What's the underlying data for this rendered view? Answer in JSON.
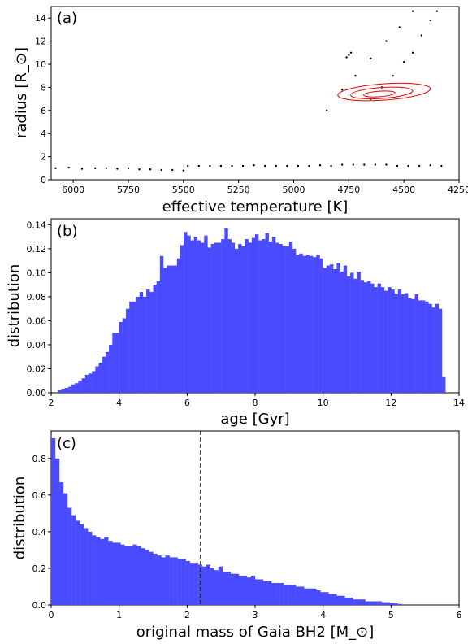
{
  "chart_data": [
    {
      "type": "scatter",
      "panel_label": "(a)",
      "xlabel": "effective temperature [K]",
      "ylabel": "radius [R_⊙]",
      "xlim": [
        6100,
        4250
      ],
      "ylim": [
        0,
        15
      ],
      "x_ticks": [
        6000,
        5750,
        5500,
        5250,
        5000,
        4750,
        4500,
        4250
      ],
      "y_ticks": [
        0,
        2,
        4,
        6,
        8,
        10,
        12,
        14
      ],
      "series": [
        {
          "name": "",
          "color": "#000000",
          "points": [
            [
              6080,
              1.0
            ],
            [
              6020,
              1.05
            ],
            [
              5960,
              0.95
            ],
            [
              5900,
              1.0
            ],
            [
              5850,
              1.0
            ],
            [
              5800,
              0.95
            ],
            [
              5750,
              1.0
            ],
            [
              5700,
              0.9
            ],
            [
              5650,
              0.9
            ],
            [
              5600,
              0.85
            ],
            [
              5550,
              0.85
            ],
            [
              5500,
              0.8
            ],
            [
              5480,
              1.2
            ],
            [
              5430,
              1.2
            ],
            [
              5380,
              1.2
            ],
            [
              5330,
              1.2
            ],
            [
              5280,
              1.2
            ],
            [
              5230,
              1.2
            ],
            [
              5180,
              1.25
            ],
            [
              5130,
              1.2
            ],
            [
              5080,
              1.2
            ],
            [
              5030,
              1.2
            ],
            [
              4980,
              1.2
            ],
            [
              4930,
              1.2
            ],
            [
              4880,
              1.25
            ],
            [
              4830,
              1.2
            ],
            [
              4780,
              1.3
            ],
            [
              4730,
              1.3
            ],
            [
              4680,
              1.3
            ],
            [
              4630,
              1.3
            ],
            [
              4580,
              1.3
            ],
            [
              4530,
              1.2
            ],
            [
              4480,
              1.2
            ],
            [
              4430,
              1.2
            ],
            [
              4380,
              1.25
            ],
            [
              4330,
              1.2
            ],
            [
              4850,
              6.0
            ],
            [
              4780,
              7.8
            ],
            [
              4720,
              9.0
            ],
            [
              4650,
              10.5
            ],
            [
              4580,
              12.0
            ],
            [
              4520,
              13.2
            ],
            [
              4460,
              14.6
            ],
            [
              4650,
              7.0
            ],
            [
              4600,
              8.0
            ],
            [
              4550,
              9.0
            ],
            [
              4500,
              10.2
            ],
            [
              4460,
              11.0
            ],
            [
              4420,
              12.5
            ],
            [
              4380,
              13.8
            ],
            [
              4350,
              14.6
            ],
            [
              4750,
              10.8
            ],
            [
              4740,
              11.0
            ],
            [
              4760,
              10.6
            ]
          ]
        }
      ],
      "annotations": [
        {
          "type": "confidence_ellipses",
          "color": "#e00000",
          "center": [
            4590,
            7.6
          ],
          "count": 3
        }
      ]
    },
    {
      "type": "bar",
      "panel_label": "(b)",
      "xlabel": "age [Gyr]",
      "ylabel": "distribution",
      "xlim": [
        2,
        14
      ],
      "ylim": [
        0,
        0.145
      ],
      "x_ticks": [
        2,
        4,
        6,
        8,
        10,
        12,
        14
      ],
      "y_ticks": [
        0.0,
        0.02,
        0.04,
        0.06,
        0.08,
        0.1,
        0.12,
        0.14
      ],
      "color": "#4a4aff",
      "bin_start": 2.2,
      "bin_width": 0.1,
      "values": [
        0.002,
        0.003,
        0.004,
        0.005,
        0.007,
        0.008,
        0.01,
        0.012,
        0.015,
        0.016,
        0.018,
        0.022,
        0.025,
        0.03,
        0.034,
        0.04,
        0.05,
        0.05,
        0.059,
        0.062,
        0.07,
        0.076,
        0.076,
        0.08,
        0.084,
        0.08,
        0.086,
        0.084,
        0.09,
        0.093,
        0.114,
        0.104,
        0.106,
        0.106,
        0.106,
        0.112,
        0.123,
        0.134,
        0.131,
        0.127,
        0.13,
        0.127,
        0.125,
        0.131,
        0.121,
        0.124,
        0.125,
        0.125,
        0.128,
        0.137,
        0.128,
        0.125,
        0.12,
        0.124,
        0.122,
        0.128,
        0.125,
        0.129,
        0.132,
        0.127,
        0.128,
        0.133,
        0.126,
        0.13,
        0.125,
        0.124,
        0.122,
        0.122,
        0.126,
        0.12,
        0.115,
        0.116,
        0.114,
        0.115,
        0.114,
        0.113,
        0.115,
        0.112,
        0.104,
        0.106,
        0.107,
        0.103,
        0.108,
        0.101,
        0.106,
        0.097,
        0.1,
        0.095,
        0.101,
        0.094,
        0.092,
        0.093,
        0.091,
        0.088,
        0.091,
        0.088,
        0.085,
        0.088,
        0.086,
        0.082,
        0.086,
        0.082,
        0.083,
        0.079,
        0.078,
        0.082,
        0.077,
        0.077,
        0.076,
        0.074,
        0.071,
        0.074,
        0.07,
        0.013
      ]
    },
    {
      "type": "bar",
      "panel_label": "(c)",
      "xlabel": "original mass of Gaia BH2 [M_⊙]",
      "ylabel": "distribution",
      "xlim": [
        0,
        6
      ],
      "ylim": [
        0,
        0.95
      ],
      "x_ticks": [
        0,
        1,
        2,
        3,
        4,
        5,
        6
      ],
      "y_ticks": [
        0.0,
        0.2,
        0.4,
        0.6,
        0.8
      ],
      "color": "#4a4aff",
      "bin_start": 0.0,
      "bin_width": 0.06,
      "values": [
        0.91,
        0.8,
        0.67,
        0.61,
        0.53,
        0.49,
        0.46,
        0.44,
        0.42,
        0.4,
        0.38,
        0.37,
        0.36,
        0.37,
        0.35,
        0.34,
        0.34,
        0.33,
        0.32,
        0.32,
        0.33,
        0.32,
        0.31,
        0.3,
        0.29,
        0.28,
        0.27,
        0.26,
        0.27,
        0.26,
        0.26,
        0.25,
        0.25,
        0.24,
        0.23,
        0.23,
        0.22,
        0.21,
        0.22,
        0.2,
        0.19,
        0.21,
        0.18,
        0.18,
        0.17,
        0.17,
        0.16,
        0.16,
        0.15,
        0.16,
        0.14,
        0.14,
        0.13,
        0.13,
        0.12,
        0.12,
        0.12,
        0.11,
        0.11,
        0.11,
        0.1,
        0.1,
        0.09,
        0.09,
        0.09,
        0.08,
        0.07,
        0.07,
        0.06,
        0.06,
        0.05,
        0.05,
        0.04,
        0.04,
        0.03,
        0.03,
        0.03,
        0.02,
        0.02,
        0.02,
        0.02,
        0.015,
        0.015,
        0.01,
        0.008,
        0.005
      ],
      "vline": {
        "x": 2.2,
        "color": "#000000",
        "style": "dashed"
      }
    }
  ]
}
